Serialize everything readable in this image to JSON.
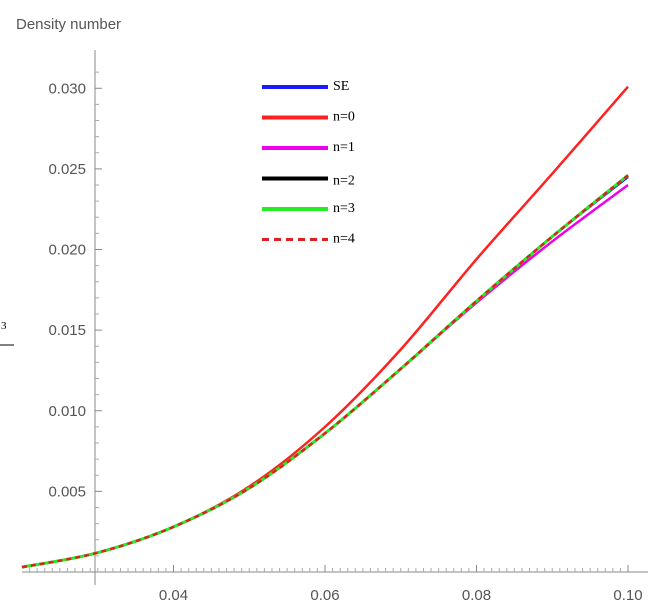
{
  "chart_data": {
    "type": "line",
    "title": "",
    "xlabel": "",
    "ylabel": "Density number",
    "xlim": [
      0.02,
      0.1
    ],
    "ylim": [
      0,
      0.032
    ],
    "x_origin": 0.03,
    "x_ticks": [
      "0.04",
      "0.06",
      "0.08",
      "0.10"
    ],
    "x_tick_values": [
      0.04,
      0.06,
      0.08,
      0.1
    ],
    "y_ticks": [
      "0.005",
      "0.010",
      "0.015",
      "0.020",
      "0.025",
      "0.030"
    ],
    "y_tick_values": [
      0.005,
      0.01,
      0.015,
      0.02,
      0.025,
      0.03
    ],
    "grid": false,
    "legend_position": "top-center",
    "x": [
      0.02,
      0.03,
      0.04,
      0.05,
      0.06,
      0.07,
      0.08,
      0.09,
      0.1
    ],
    "series": [
      {
        "name": "SE",
        "color": "#1a1aff",
        "dash": "solid",
        "values": [
          0.0003,
          0.0012,
          0.0028,
          0.0052,
          0.0086,
          0.0126,
          0.0168,
          0.0208,
          0.0245
        ]
      },
      {
        "name": "n=0",
        "color": "#ff2020",
        "dash": "solid",
        "values": [
          0.0003,
          0.0012,
          0.0028,
          0.0053,
          0.009,
          0.0138,
          0.0194,
          0.0247,
          0.0301
        ]
      },
      {
        "name": "n=1",
        "color": "#ee00ee",
        "dash": "solid",
        "values": [
          0.0003,
          0.0012,
          0.0028,
          0.0052,
          0.0086,
          0.0126,
          0.0167,
          0.0205,
          0.024
        ]
      },
      {
        "name": "n=2",
        "color": "#000000",
        "dash": "solid",
        "values": [
          0.0003,
          0.0012,
          0.0028,
          0.0052,
          0.0086,
          0.0126,
          0.0168,
          0.0208,
          0.0246
        ]
      },
      {
        "name": "n=3",
        "color": "#22ee22",
        "dash": "solid",
        "values": [
          0.0003,
          0.0012,
          0.0028,
          0.0052,
          0.0086,
          0.0126,
          0.0168,
          0.0208,
          0.0246
        ]
      },
      {
        "name": "n=4",
        "color": "#e02020",
        "dash": "dashed",
        "values": [
          0.0003,
          0.0012,
          0.0028,
          0.0052,
          0.0086,
          0.0126,
          0.0168,
          0.0208,
          0.0246
        ]
      }
    ]
  },
  "margin_marks": {
    "fragment": "3"
  }
}
